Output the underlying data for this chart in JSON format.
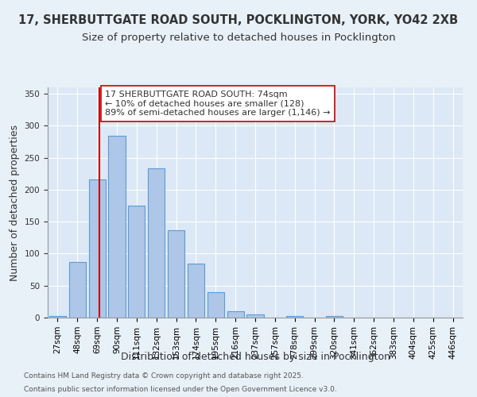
{
  "title_line1": "17, SHERBUTTGATE ROAD SOUTH, POCKLINGTON, YORK, YO42 2XB",
  "title_line2": "Size of property relative to detached houses in Pocklington",
  "xlabel": "Distribution of detached houses by size in Pocklington",
  "ylabel": "Number of detached properties",
  "categories": [
    "27sqm",
    "48sqm",
    "69sqm",
    "90sqm",
    "111sqm",
    "132sqm",
    "153sqm",
    "174sqm",
    "195sqm",
    "216sqm",
    "237sqm",
    "257sqm",
    "278sqm",
    "299sqm",
    "320sqm",
    "341sqm",
    "362sqm",
    "383sqm",
    "404sqm",
    "425sqm",
    "446sqm"
  ],
  "bar_heights": [
    2,
    87,
    216,
    284,
    175,
    234,
    137,
    85,
    40,
    10,
    5,
    0,
    2,
    0,
    2,
    0,
    0,
    0,
    0,
    0,
    0
  ],
  "bar_color": "#aec6e8",
  "bar_edgecolor": "#5b9bd5",
  "vline_x": 2.1,
  "vline_color": "#cc0000",
  "annotation_text": "17 SHERBUTTGATE ROAD SOUTH: 74sqm\n← 10% of detached houses are smaller (128)\n89% of semi-detached houses are larger (1,146) →",
  "annotation_box_color": "#ffffff",
  "annotation_border_color": "#cc0000",
  "ylim": [
    0,
    360
  ],
  "yticks": [
    0,
    50,
    100,
    150,
    200,
    250,
    300,
    350
  ],
  "footer_line1": "Contains HM Land Registry data © Crown copyright and database right 2025.",
  "footer_line2": "Contains public sector information licensed under the Open Government Licence v3.0.",
  "bg_color": "#e8f0f8",
  "plot_bg_color": "#dce8f5",
  "grid_color": "#ffffff",
  "title_fontsize": 10.5,
  "subtitle_fontsize": 9.5,
  "axis_label_fontsize": 9,
  "tick_fontsize": 7.5,
  "annotation_fontsize": 8
}
